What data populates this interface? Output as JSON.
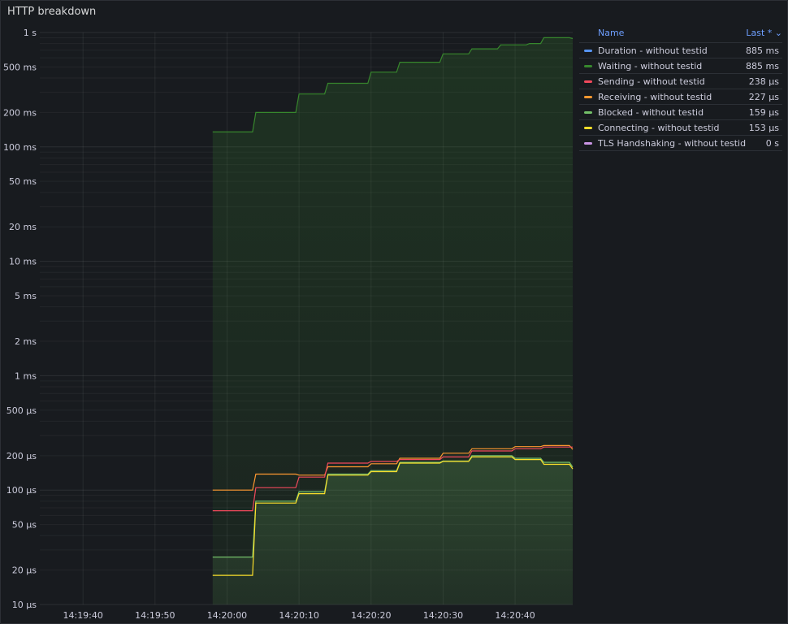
{
  "panel": {
    "title": "HTTP breakdown"
  },
  "legend": {
    "name_header": "Name",
    "last_header": "Last * ⌄",
    "items": [
      {
        "name": "Duration - without testid",
        "value": "885 ms",
        "color": "#5794f2"
      },
      {
        "name": "Waiting - without testid",
        "value": "885 ms",
        "color": "#37872d"
      },
      {
        "name": "Sending - without testid",
        "value": "238 µs",
        "color": "#f2495c"
      },
      {
        "name": "Receiving - without testid",
        "value": "227 µs",
        "color": "#ff9830"
      },
      {
        "name": "Blocked - without testid",
        "value": "159 µs",
        "color": "#73bf69"
      },
      {
        "name": "Connecting - without testid",
        "value": "153 µs",
        "color": "#fade2a"
      },
      {
        "name": "TLS Handshaking - without testid",
        "value": "0 s",
        "color": "#ca95e5"
      }
    ]
  },
  "chart_data": {
    "type": "line",
    "y_scale": "log",
    "ylim_seconds": [
      1e-05,
      1
    ],
    "y_ticks": [
      {
        "value": 1,
        "label": "1 s"
      },
      {
        "value": 0.5,
        "label": "500 ms"
      },
      {
        "value": 0.2,
        "label": "200 ms"
      },
      {
        "value": 0.1,
        "label": "100 ms"
      },
      {
        "value": 0.05,
        "label": "50 ms"
      },
      {
        "value": 0.02,
        "label": "20 ms"
      },
      {
        "value": 0.01,
        "label": "10 ms"
      },
      {
        "value": 0.005,
        "label": "5 ms"
      },
      {
        "value": 0.002,
        "label": "2 ms"
      },
      {
        "value": 0.001,
        "label": "1 ms"
      },
      {
        "value": 0.0005,
        "label": "500 µs"
      },
      {
        "value": 0.0002,
        "label": "200 µs"
      },
      {
        "value": 0.0001,
        "label": "100 µs"
      },
      {
        "value": 5e-05,
        "label": "50 µs"
      },
      {
        "value": 2e-05,
        "label": "20 µs"
      },
      {
        "value": 1e-05,
        "label": "10 µs"
      }
    ],
    "xlim": [
      "14:19:34",
      "14:20:48"
    ],
    "x_ticks": [
      "14:19:40",
      "14:19:50",
      "14:20:00",
      "14:20:10",
      "14:20:20",
      "14:20:30",
      "14:20:40"
    ],
    "x": [
      "14:19:58",
      "14:20:00",
      "14:20:02",
      "14:20:04",
      "14:20:06",
      "14:20:08",
      "14:20:10",
      "14:20:12",
      "14:20:14",
      "14:20:16",
      "14:20:18",
      "14:20:20",
      "14:20:22",
      "14:20:24",
      "14:20:26",
      "14:20:28",
      "14:20:30",
      "14:20:32",
      "14:20:34",
      "14:20:36",
      "14:20:38",
      "14:20:40",
      "14:20:42",
      "14:20:44",
      "14:20:46",
      "14:20:48"
    ],
    "units": "seconds",
    "series": [
      {
        "name": "Waiting - without testid",
        "color": "#37872d",
        "fill": true,
        "values": [
          0.135,
          0.135,
          0.135,
          0.2,
          0.2,
          0.2,
          0.29,
          0.29,
          0.36,
          0.36,
          0.36,
          0.45,
          0.45,
          0.55,
          0.55,
          0.55,
          0.65,
          0.65,
          0.72,
          0.72,
          0.78,
          0.78,
          0.8,
          0.9,
          0.9,
          0.885
        ]
      },
      {
        "name": "Receiving - without testid",
        "color": "#ff9830",
        "fill": false,
        "values": [
          0.0001,
          0.0001,
          0.0001,
          0.000138,
          0.000138,
          0.000138,
          0.000135,
          0.000135,
          0.00016,
          0.00016,
          0.00016,
          0.00017,
          0.00017,
          0.00019,
          0.00019,
          0.00019,
          0.00021,
          0.00021,
          0.00023,
          0.00023,
          0.00023,
          0.00024,
          0.00024,
          0.000245,
          0.000245,
          0.000227
        ]
      },
      {
        "name": "Sending - without testid",
        "color": "#f2495c",
        "fill": false,
        "values": [
          6.6e-05,
          6.6e-05,
          6.6e-05,
          0.000105,
          0.000105,
          0.000105,
          0.00013,
          0.00013,
          0.000172,
          0.000172,
          0.000172,
          0.000178,
          0.000178,
          0.000185,
          0.000185,
          0.000185,
          0.000195,
          0.000195,
          0.00022,
          0.00022,
          0.00022,
          0.00023,
          0.00023,
          0.000238,
          0.000238,
          0.000238
        ]
      },
      {
        "name": "Blocked - without testid",
        "color": "#73bf69",
        "fill": true,
        "values": [
          2.6e-05,
          2.6e-05,
          2.6e-05,
          8e-05,
          8e-05,
          8e-05,
          9.7e-05,
          9.7e-05,
          0.000138,
          0.000138,
          0.000138,
          0.000148,
          0.000148,
          0.000175,
          0.000175,
          0.000175,
          0.00018,
          0.00018,
          0.0002,
          0.0002,
          0.0002,
          0.00019,
          0.00019,
          0.000175,
          0.000175,
          0.000159
        ]
      },
      {
        "name": "Connecting - without testid",
        "color": "#fade2a",
        "fill": false,
        "values": [
          1.8e-05,
          1.8e-05,
          1.8e-05,
          7.7e-05,
          7.7e-05,
          7.7e-05,
          9.3e-05,
          9.3e-05,
          0.000135,
          0.000135,
          0.000135,
          0.000145,
          0.000145,
          0.000172,
          0.000172,
          0.000172,
          0.000178,
          0.000178,
          0.000195,
          0.000195,
          0.000195,
          0.000185,
          0.000185,
          0.000168,
          0.000168,
          0.000153
        ]
      }
    ]
  }
}
